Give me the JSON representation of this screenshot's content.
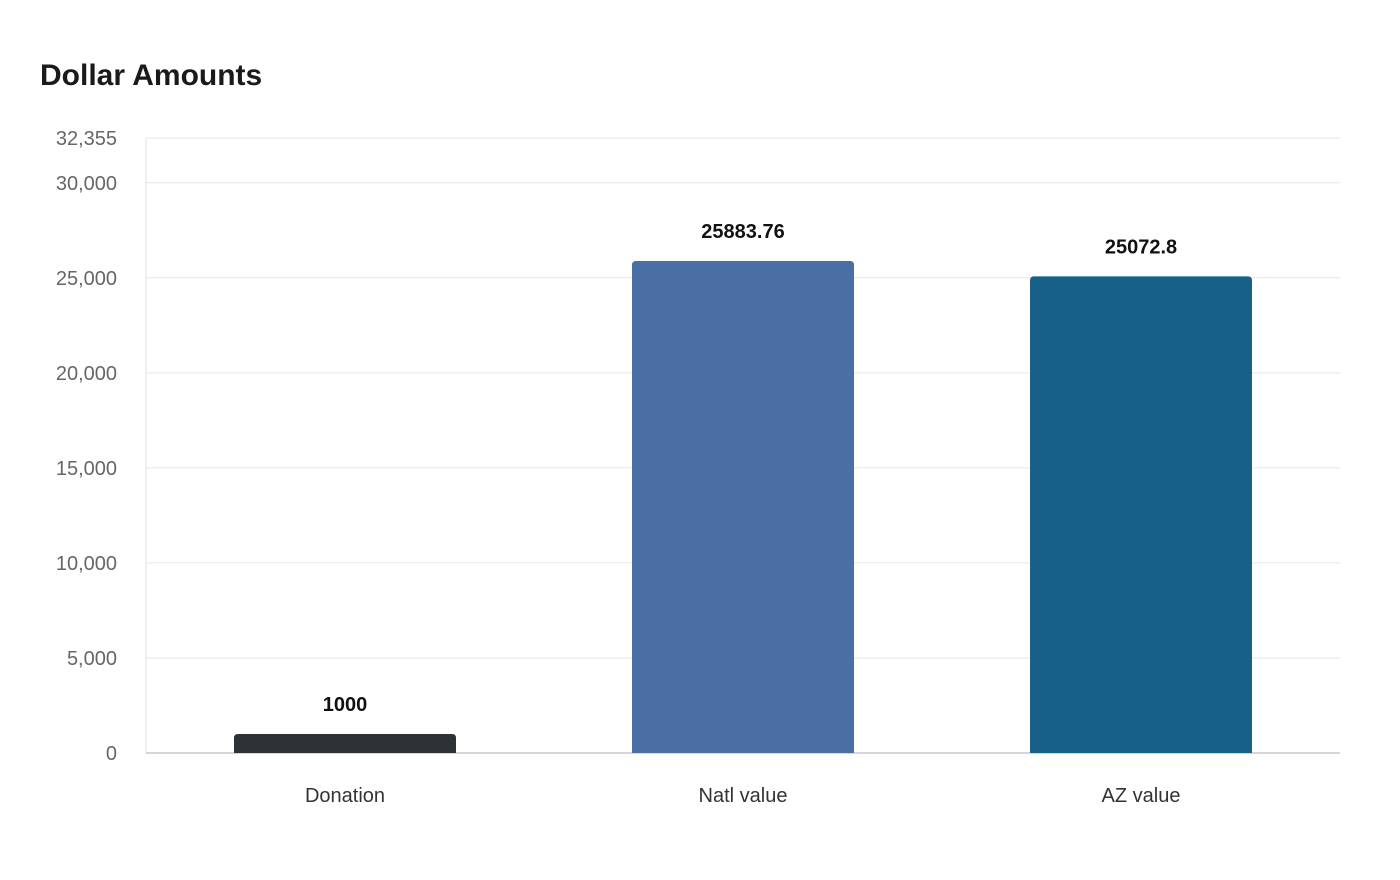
{
  "chart_data": {
    "type": "bar",
    "title": "Dollar Amounts",
    "xlabel": "",
    "ylabel": "",
    "categories": [
      "Donation",
      "Natl value",
      "AZ value"
    ],
    "values": [
      1000,
      25883.76,
      25072.8
    ],
    "data_labels": [
      "1000",
      "25883.76",
      "25072.8"
    ],
    "colors": [
      "#2e3235",
      "#4a6fa5",
      "#176189"
    ],
    "ylim": [
      0,
      32355
    ],
    "yticks": [
      0,
      5000,
      10000,
      15000,
      20000,
      25000,
      30000,
      32355
    ],
    "ytick_labels": [
      "0",
      "5,000",
      "10,000",
      "15,000",
      "20,000",
      "25,000",
      "30,000",
      "32,355"
    ],
    "grid": true,
    "legend": "none"
  }
}
